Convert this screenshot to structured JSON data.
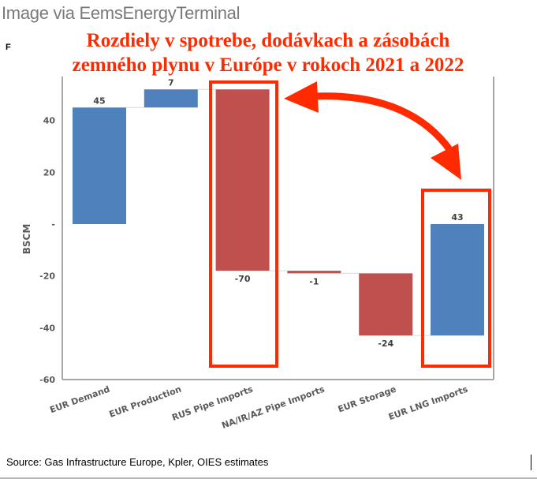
{
  "watermark": "Image via EemsEnergyTerminal",
  "stray_char": "F",
  "headline": {
    "line1": "Rozdiely v spotrebe, dodávkach a zásobách",
    "line2": "zemného plynu v Európe v rokoch 2021 a 2022"
  },
  "source": "Source: Gas Infrastructure Europe, Kpler, OIES estimates",
  "colors": {
    "positive": "#4f81bd",
    "negative": "#c0504d",
    "annotation": "#ff2a00",
    "axis": "#a6a6a6"
  },
  "chart_data": {
    "type": "bar",
    "subtype": "waterfall",
    "title": "Rozdiely v spotrebe, dodávkach a zásobách zemného plynu v Európe v rokoch 2021 a 2022",
    "xlabel": "",
    "ylabel": "BSCM",
    "ylim": [
      -60,
      55
    ],
    "yticks": [
      40,
      20,
      0,
      -20,
      -40,
      -60
    ],
    "ytick_labels": [
      "40",
      "20",
      "-",
      "-20",
      "-40",
      "-60"
    ],
    "grid": false,
    "categories": [
      "EUR Demand",
      "EUR Production",
      "RUS Pipe Imports",
      "NA/IR/AZ Pipe Imports",
      "EUR Storage",
      "EUR LNG Imports"
    ],
    "values": [
      45,
      7,
      -70,
      -1,
      -24,
      43
    ],
    "data_labels": [
      "45",
      "7",
      "-70",
      "-1",
      "-24",
      "43"
    ],
    "bars": [
      {
        "category": "EUR Demand",
        "start": 0,
        "end": 45,
        "sign": "positive"
      },
      {
        "category": "EUR Production",
        "start": 45,
        "end": 52,
        "sign": "positive"
      },
      {
        "category": "RUS Pipe Imports",
        "start": 52,
        "end": -18,
        "sign": "negative"
      },
      {
        "category": "NA/IR/AZ Pipe Imports",
        "start": -18,
        "end": -19,
        "sign": "negative"
      },
      {
        "category": "EUR Storage",
        "start": -19,
        "end": -43,
        "sign": "negative"
      },
      {
        "category": "EUR LNG Imports",
        "start": -43,
        "end": 0,
        "sign": "positive"
      }
    ],
    "annotations": [
      {
        "type": "highlight-box",
        "target": "RUS Pipe Imports"
      },
      {
        "type": "highlight-box",
        "target": "EUR LNG Imports"
      },
      {
        "type": "double-arrow",
        "from": "RUS Pipe Imports",
        "to": "EUR LNG Imports"
      }
    ],
    "legend": "none"
  }
}
